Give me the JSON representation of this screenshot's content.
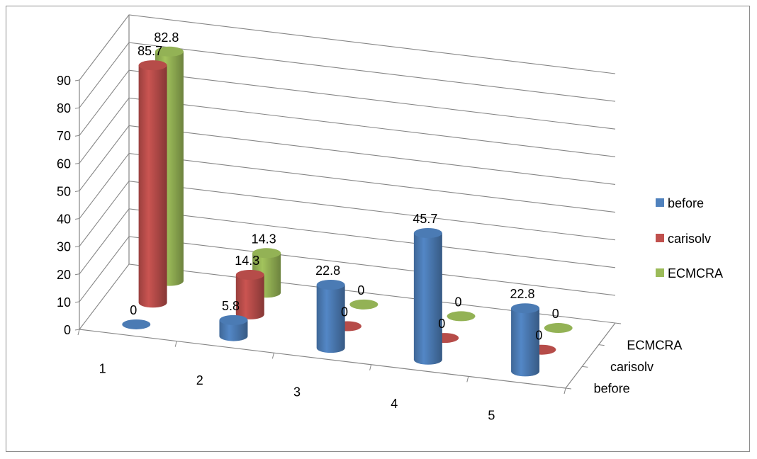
{
  "chart_data": {
    "type": "bar",
    "style": "3d-cylinder",
    "categories": [
      "1",
      "2",
      "3",
      "4",
      "5"
    ],
    "series": [
      {
        "name": "before",
        "values": [
          0,
          5.8,
          22.8,
          45.7,
          22.8
        ],
        "color": "#4f81bd"
      },
      {
        "name": "carisolv",
        "values": [
          85.7,
          14.3,
          0,
          0,
          0
        ],
        "color": "#c0504d"
      },
      {
        "name": "ECMCRA",
        "values": [
          82.8,
          14.3,
          0,
          0,
          0
        ],
        "color": "#9bbb59"
      }
    ],
    "y_ticks": [
      "0",
      "10",
      "20",
      "30",
      "40",
      "50",
      "60",
      "70",
      "80",
      "90"
    ],
    "ylim": [
      0,
      90
    ],
    "title": "",
    "xlabel": "",
    "ylabel": "",
    "grid": true,
    "legend_position": "right"
  }
}
